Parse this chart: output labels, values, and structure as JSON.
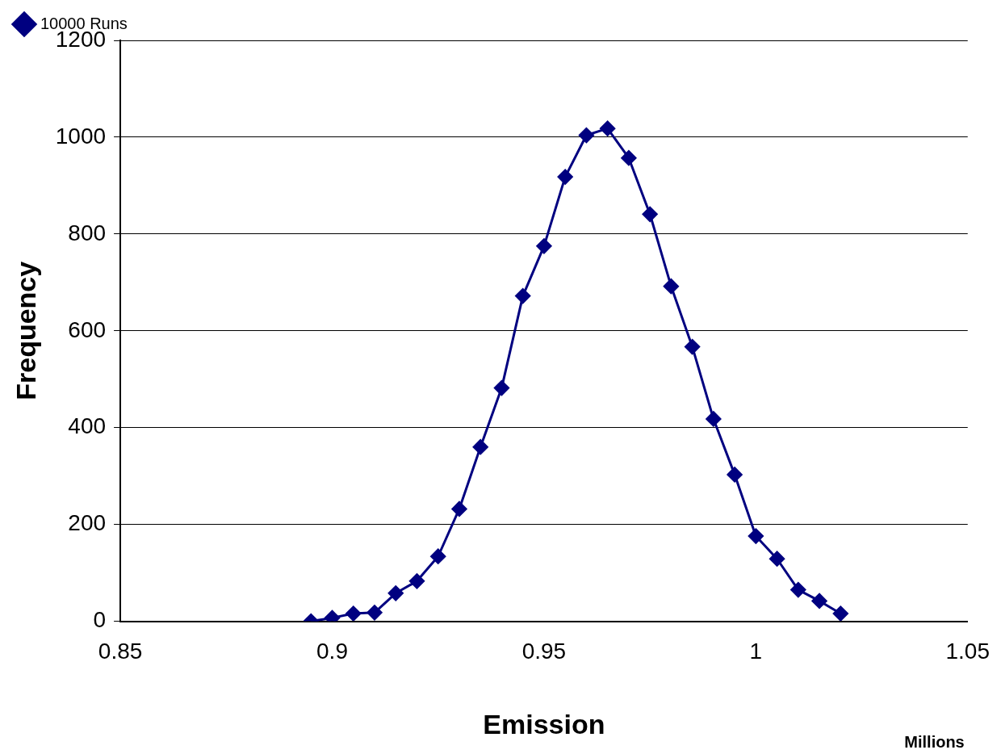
{
  "chart_data": {
    "type": "line",
    "xlabel": "Emission",
    "ylabel": "Frequency",
    "annotations": [
      "Millions"
    ],
    "x": [
      0.895,
      0.9,
      0.905,
      0.91,
      0.915,
      0.92,
      0.925,
      0.93,
      0.935,
      0.94,
      0.945,
      0.95,
      0.955,
      0.96,
      0.965,
      0.97,
      0.975,
      0.98,
      0.985,
      0.99,
      0.995,
      1.0,
      1.005,
      1.01,
      1.015,
      1.02
    ],
    "series": [
      {
        "name": "10000 Runs",
        "color": "#000080",
        "values": [
          0,
          7,
          16,
          18,
          58,
          83,
          134,
          232,
          360,
          482,
          672,
          775,
          918,
          1004,
          1018,
          957,
          841,
          692,
          567,
          418,
          303,
          176,
          129,
          65,
          42,
          16
        ]
      }
    ],
    "xlim": [
      0.85,
      1.05
    ],
    "xticks": [
      0.85,
      0.9,
      0.95,
      1,
      1.05
    ],
    "ylim": [
      0,
      1200
    ],
    "yticks": [
      0,
      200,
      400,
      600,
      800,
      1000,
      1200
    ],
    "grid": "y",
    "legend": "top left",
    "marker": "diamond",
    "line_style": "solid"
  }
}
